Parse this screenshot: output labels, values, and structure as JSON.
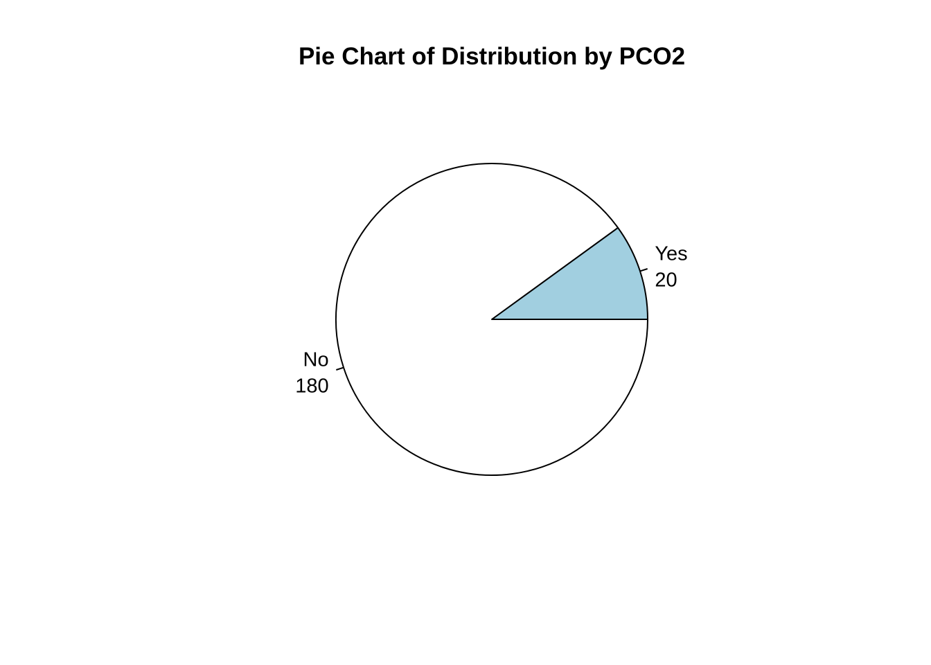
{
  "chart_data": {
    "type": "pie",
    "title": "Pie Chart of Distribution by PCO2",
    "slices": [
      {
        "label": "Yes",
        "value": 20,
        "color": "#a1cfe0"
      },
      {
        "label": "No",
        "value": 180,
        "color": "#ffffff"
      }
    ],
    "start_angle_deg": 0,
    "direction": "counterclockwise",
    "outline_color": "#000000"
  }
}
